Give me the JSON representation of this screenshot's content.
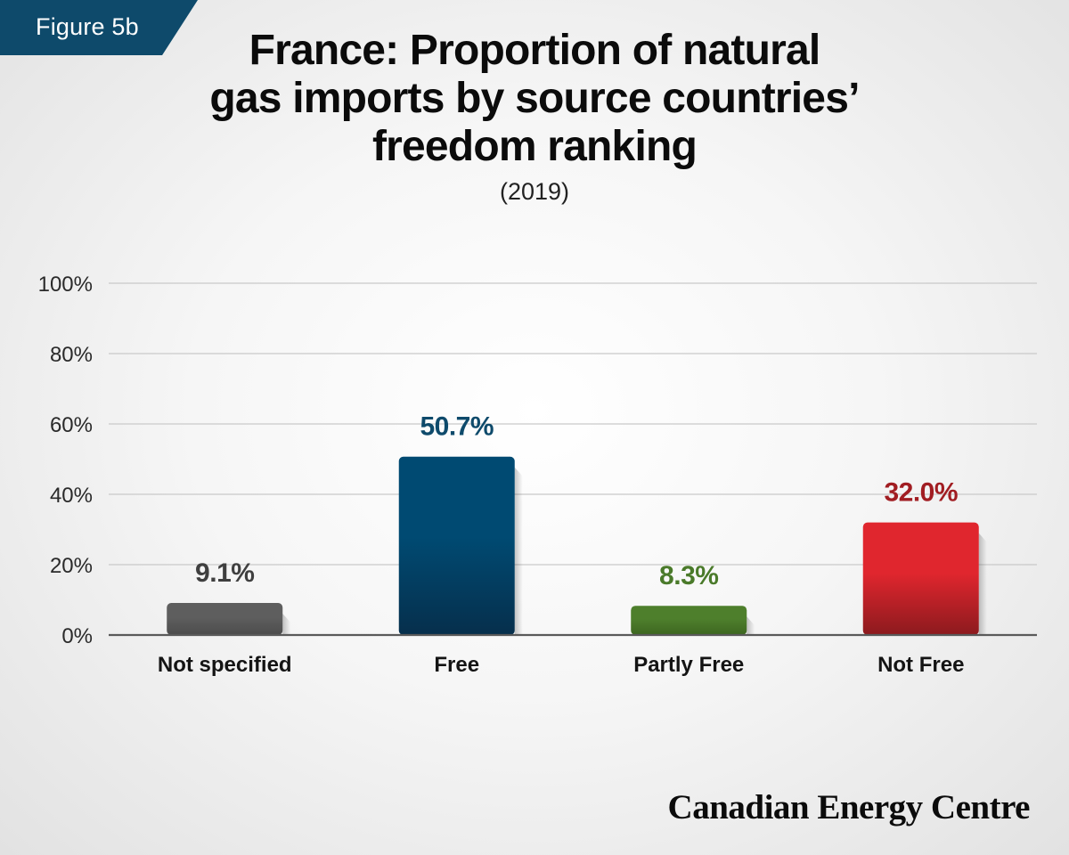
{
  "badge": {
    "label": "Figure 5b"
  },
  "header": {
    "title_lines": [
      "France: Proportion of natural",
      "gas imports by source countries’",
      "freedom ranking"
    ],
    "subtitle": "(2019)"
  },
  "brand": {
    "name": "Canadian Energy Centre"
  },
  "chart_data": {
    "type": "bar",
    "title": "France: Proportion of natural gas imports by source countries’ freedom ranking",
    "subtitle": "(2019)",
    "categories": [
      "Not specified",
      "Free",
      "Partly Free",
      "Not Free"
    ],
    "values": [
      9.1,
      50.7,
      8.3,
      32.0
    ],
    "value_labels": [
      "9.1%",
      "50.7%",
      "8.3%",
      "32.0%"
    ],
    "colors": [
      "#5a5a5a",
      "#004a72",
      "#4a7a2a",
      "#d8272f"
    ],
    "label_colors": [
      "#3f3f3f",
      "#0e4a6b",
      "#4a7a2a",
      "#a11d22"
    ],
    "ylim": [
      0,
      100
    ],
    "yticks": [
      0,
      20,
      40,
      60,
      80,
      100
    ],
    "ytick_labels": [
      "0%",
      "20%",
      "40%",
      "60%",
      "80%",
      "100%"
    ],
    "xlabel": "",
    "ylabel": "",
    "grid": true,
    "legend": "none"
  }
}
